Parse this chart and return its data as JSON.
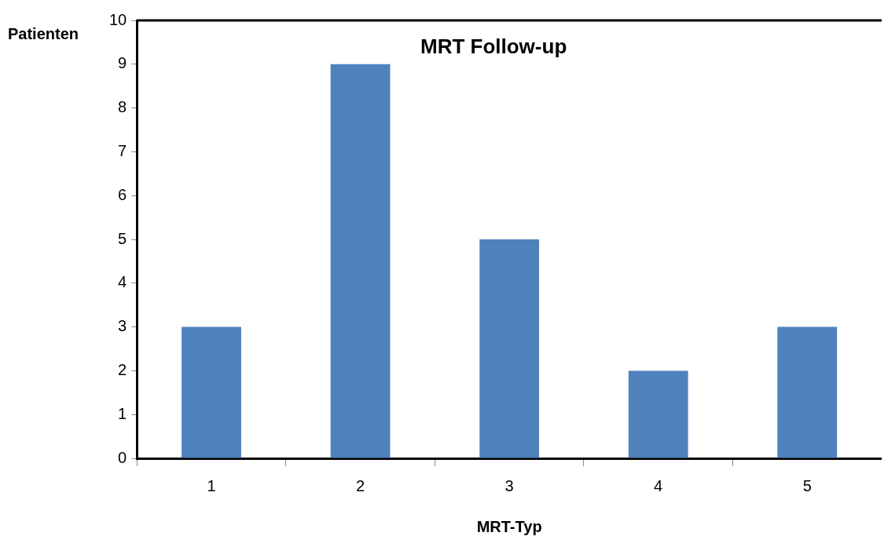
{
  "chart_data": {
    "type": "bar",
    "title": "MRT Follow-up",
    "xlabel": "MRT-Typ",
    "ylabel": "Patienten",
    "categories": [
      "1",
      "2",
      "3",
      "4",
      "5"
    ],
    "values": [
      3,
      9,
      5,
      2,
      3
    ],
    "color": "#4f81bd",
    "ylim": [
      0,
      10
    ],
    "yticks": [
      0,
      1,
      2,
      3,
      4,
      5,
      6,
      7,
      8,
      9,
      10
    ],
    "grid": false,
    "legend": false
  }
}
